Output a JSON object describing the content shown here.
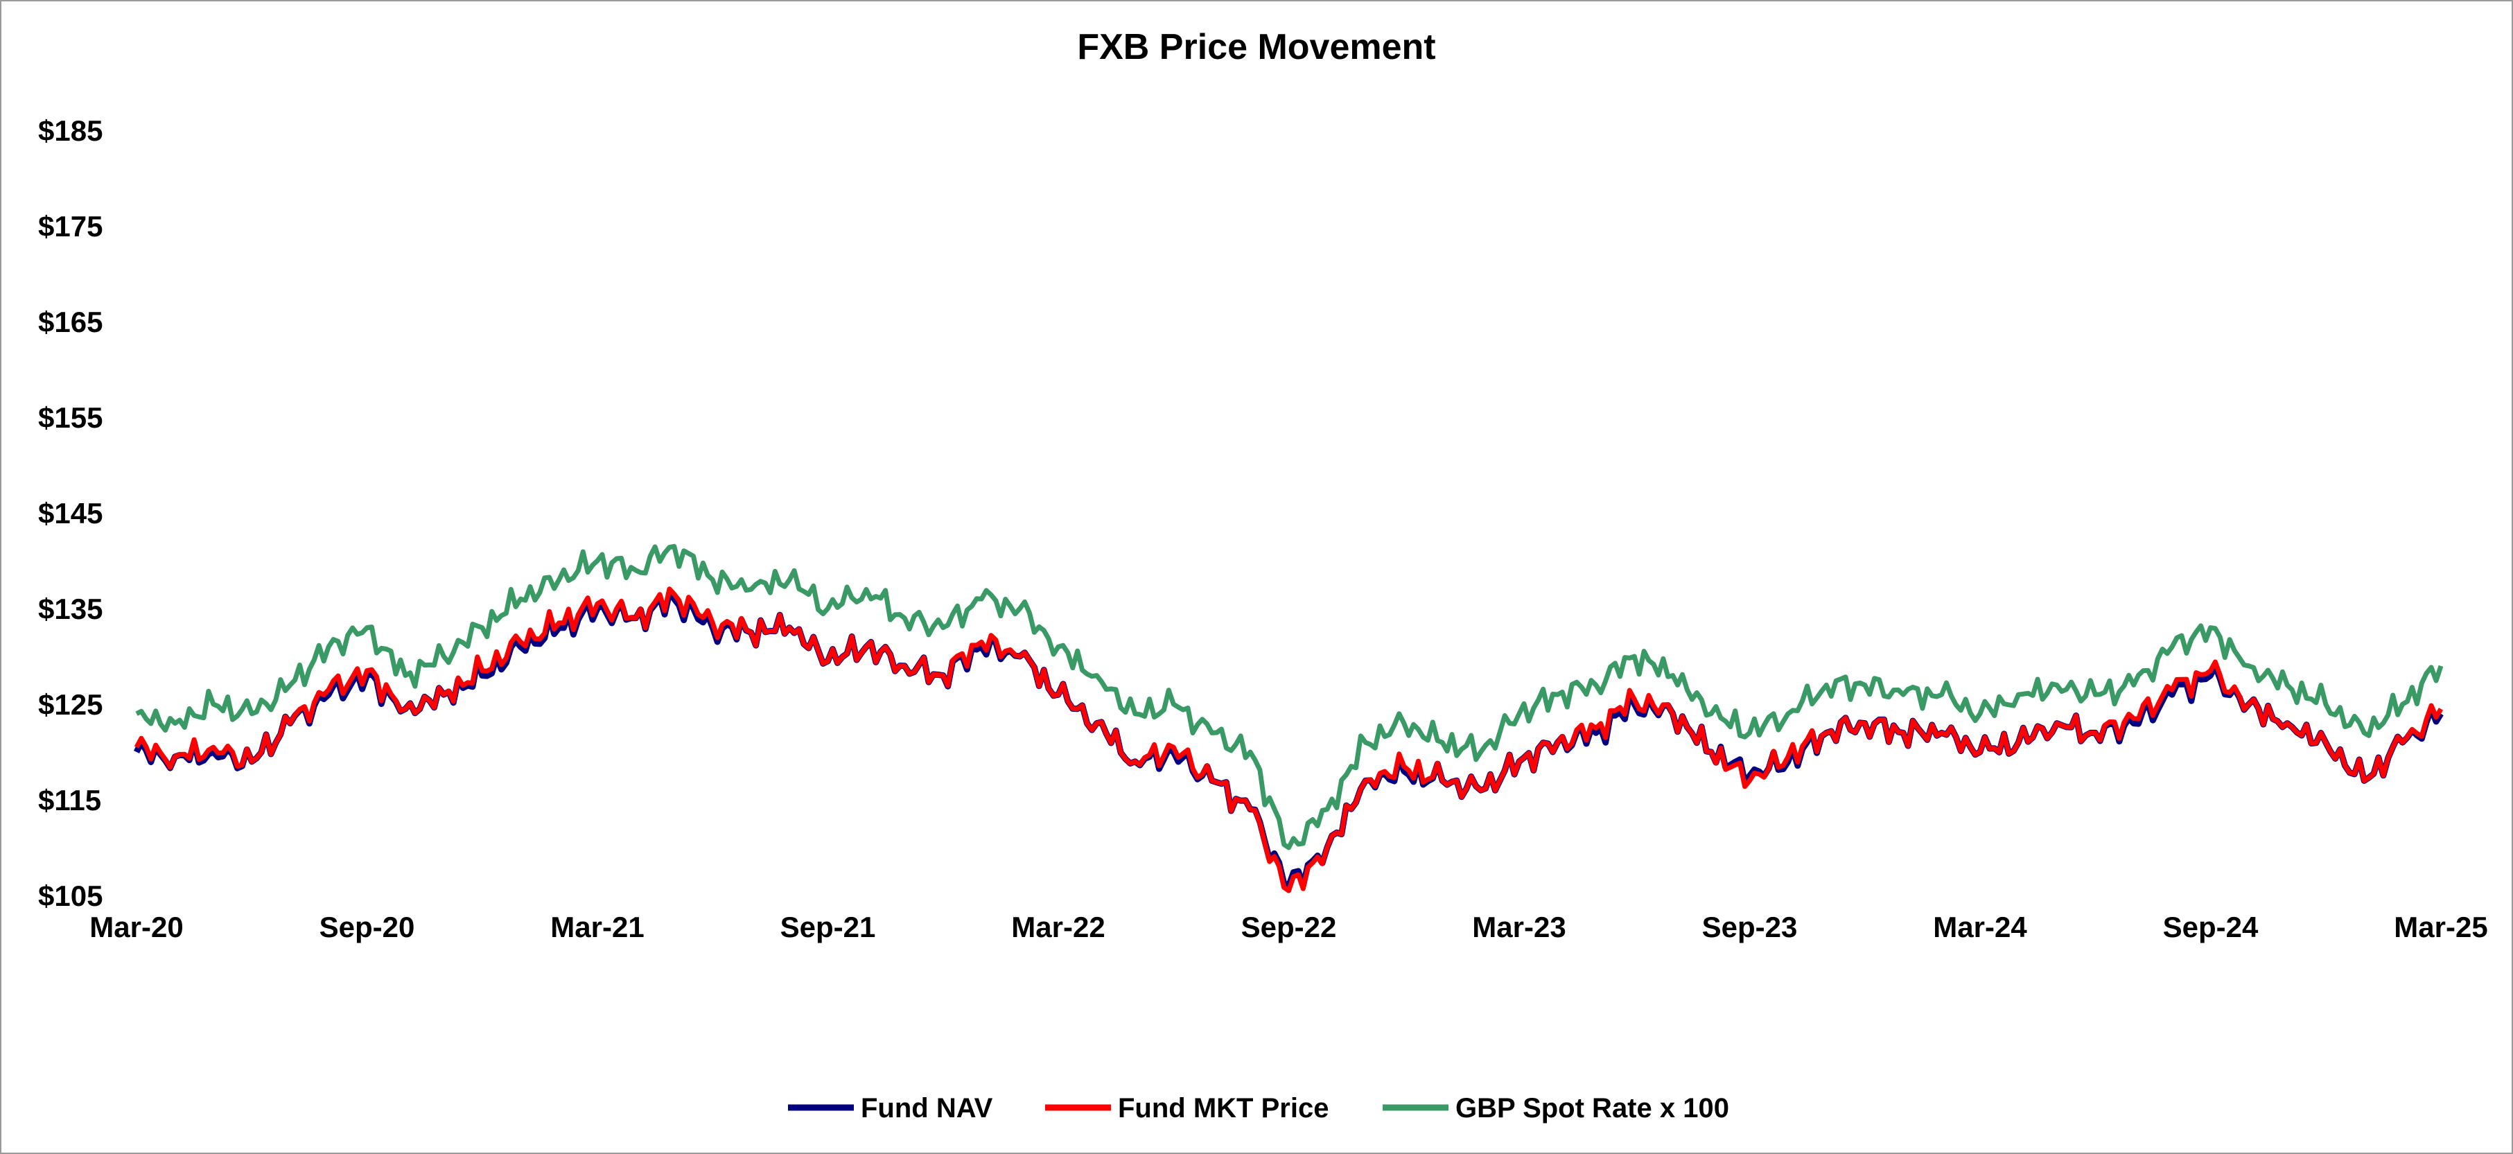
{
  "chart_data": {
    "type": "line",
    "title": "FXB Price Movement",
    "xlabel": "",
    "ylabel": "",
    "ylim": [
      105,
      185
    ],
    "y_ticks": [
      105,
      115,
      125,
      135,
      145,
      155,
      165,
      175,
      185
    ],
    "y_tick_labels": [
      "$105",
      "$115",
      "$125",
      "$135",
      "$145",
      "$155",
      "$165",
      "$175",
      "$185"
    ],
    "x_tick_labels": [
      "Mar-20",
      "Sep-20",
      "Mar-21",
      "Sep-21",
      "Mar-22",
      "Sep-22",
      "Mar-23",
      "Sep-23",
      "Mar-24",
      "Sep-24",
      "Mar-25"
    ],
    "x_ticks": [
      "2020-03",
      "2020-09",
      "2021-03",
      "2021-09",
      "2022-03",
      "2022-09",
      "2023-03",
      "2023-09",
      "2024-03",
      "2024-09",
      "2025-03"
    ],
    "grid": false,
    "legend_position": "bottom",
    "x": [
      "2020-03",
      "2020-04",
      "2020-05",
      "2020-06",
      "2020-07",
      "2020-08",
      "2020-09",
      "2020-10",
      "2020-11",
      "2020-12",
      "2021-01",
      "2021-02",
      "2021-03",
      "2021-04",
      "2021-05",
      "2021-06",
      "2021-07",
      "2021-08",
      "2021-09",
      "2021-10",
      "2021-11",
      "2021-12",
      "2022-01",
      "2022-02",
      "2022-03",
      "2022-04",
      "2022-05",
      "2022-06",
      "2022-07",
      "2022-08",
      "2022-09",
      "2022-10",
      "2022-11",
      "2022-12",
      "2023-01",
      "2023-02",
      "2023-03",
      "2023-04",
      "2023-05",
      "2023-06",
      "2023-07",
      "2023-08",
      "2023-09",
      "2023-10",
      "2023-11",
      "2023-12",
      "2024-01",
      "2024-02",
      "2024-03",
      "2024-04",
      "2024-05",
      "2024-06",
      "2024-07",
      "2024-08",
      "2024-09",
      "2024-10",
      "2024-11",
      "2024-12",
      "2025-01",
      "2025-02",
      "2025-03"
    ],
    "series": [
      {
        "name": "Fund NAV",
        "color": "#000080",
        "values": [
          120,
          119.5,
          120,
          119,
          123,
          126,
          128,
          124.5,
          126,
          128,
          131,
          133,
          135,
          134,
          136,
          133,
          132.5,
          133,
          129.5,
          131,
          129,
          128,
          131,
          130,
          126,
          123,
          119,
          120,
          117,
          114,
          106,
          110,
          117,
          118,
          117,
          116,
          119,
          121,
          122,
          125,
          124,
          120,
          117.5,
          119,
          122,
          123,
          122,
          122,
          120,
          121,
          123,
          122,
          123,
          126,
          128,
          125,
          123,
          121,
          117,
          121,
          124
        ]
      },
      {
        "name": "Fund MKT Price",
        "color": "#ff0000",
        "values": [
          120.5,
          119.5,
          120.5,
          119,
          123,
          126.5,
          128.5,
          124.5,
          126,
          128.5,
          131.5,
          133.5,
          135.5,
          134,
          136.5,
          133.5,
          132.5,
          133,
          129.5,
          131,
          129,
          128,
          131.5,
          130,
          126,
          123,
          119,
          120.5,
          117,
          114,
          105.5,
          110,
          117,
          118.5,
          117,
          116,
          119,
          121,
          122.5,
          125.5,
          124,
          120,
          117,
          119.5,
          122,
          123,
          122,
          122,
          120,
          121,
          123,
          122,
          123.5,
          126.5,
          128.5,
          125,
          123,
          121,
          117,
          121,
          124.5
        ]
      },
      {
        "name": "GBP Spot Rate x 100",
        "color": "#3a9a66",
        "values": [
          124,
          123,
          125,
          124,
          127,
          131,
          133,
          128,
          130,
          133,
          136,
          138,
          140,
          139,
          141.5,
          138,
          137,
          138,
          135,
          137,
          134,
          133,
          136,
          135,
          131,
          128,
          124,
          125,
          122,
          120,
          110,
          114,
          121,
          123,
          121,
          120,
          124,
          126,
          127,
          130,
          128,
          124,
          122,
          124,
          127,
          127,
          126,
          126,
          124,
          126,
          127,
          126,
          127,
          131,
          133,
          129,
          127,
          125,
          122,
          125,
          129
        ]
      }
    ]
  }
}
